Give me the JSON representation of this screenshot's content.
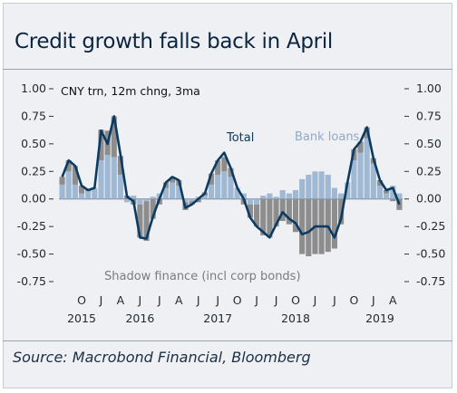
{
  "title": "Credit growth falls back in April",
  "source": "Source: Macrobond Financial, Bloomberg",
  "chart_data": {
    "type": "bar",
    "ylabel": "CNY trn, 12m chng, 3ma",
    "ylim": [
      -0.75,
      1.0
    ],
    "yticks": [
      "1.00",
      "0.75",
      "0.50",
      "0.25",
      "0.00",
      "-0.25",
      "-0.50",
      "-0.75"
    ],
    "ytick_values": [
      1.0,
      0.75,
      0.5,
      0.25,
      0.0,
      -0.25,
      -0.5,
      -0.75
    ],
    "xticks": [
      {
        "label": "O",
        "index": 3
      },
      {
        "label": "J",
        "index": 6
      },
      {
        "label": "A",
        "index": 9
      },
      {
        "label": "J",
        "index": 12
      },
      {
        "label": "J",
        "index": 15
      },
      {
        "label": "A",
        "index": 18
      },
      {
        "label": "J",
        "index": 21
      },
      {
        "label": "J",
        "index": 24
      },
      {
        "label": "O",
        "index": 27
      },
      {
        "label": "J",
        "index": 30
      },
      {
        "label": "J",
        "index": 33
      },
      {
        "label": "O",
        "index": 36
      },
      {
        "label": "J",
        "index": 39
      },
      {
        "label": "J",
        "index": 42
      },
      {
        "label": "O",
        "index": 45
      },
      {
        "label": "J",
        "index": 48
      },
      {
        "label": "A",
        "index": 51
      }
    ],
    "years": [
      {
        "label": "2015",
        "index": 3
      },
      {
        "label": "2016",
        "index": 12
      },
      {
        "label": "2017",
        "index": 24
      },
      {
        "label": "2018",
        "index": 36
      },
      {
        "label": "2019",
        "index": 49
      }
    ],
    "series": [
      {
        "name": "Bank loans",
        "kind": "bar",
        "color": "#9fb8d3",
        "values": [
          0.13,
          0.25,
          0.13,
          0.05,
          0.07,
          0.1,
          0.35,
          0.4,
          0.38,
          0.22,
          -0.03,
          0.03,
          -0.05,
          -0.02,
          0.02,
          0.05,
          0.1,
          0.15,
          0.12,
          -0.03,
          -0.02,
          0.02,
          0.03,
          0.13,
          0.22,
          0.25,
          0.2,
          0.1,
          0.05,
          -0.05,
          -0.05,
          0.03,
          0.05,
          0.02,
          0.08,
          0.05,
          0.08,
          0.18,
          0.22,
          0.25,
          0.25,
          0.22,
          0.1,
          0.05,
          0.15,
          0.35,
          0.42,
          0.55,
          0.32,
          0.12,
          0.05,
          0.12,
          0.05
        ]
      },
      {
        "name": "Shadow finance (incl corp bonds)",
        "kind": "bar",
        "color": "#8d8d8d",
        "values": [
          0.07,
          0.1,
          0.17,
          0.07,
          0.02,
          0.0,
          0.28,
          0.22,
          0.37,
          0.17,
          0.03,
          -0.05,
          -0.3,
          -0.36,
          -0.18,
          -0.05,
          0.05,
          0.05,
          0.05,
          -0.07,
          -0.03,
          -0.03,
          0.03,
          0.1,
          0.13,
          0.13,
          0.08,
          0.0,
          -0.05,
          -0.12,
          -0.2,
          -0.33,
          -0.35,
          -0.25,
          -0.2,
          -0.23,
          -0.3,
          -0.5,
          -0.52,
          -0.5,
          -0.5,
          -0.48,
          -0.45,
          -0.23,
          0.0,
          0.1,
          0.1,
          0.1,
          0.05,
          0.05,
          0.03,
          -0.02,
          -0.1
        ]
      },
      {
        "name": "Total",
        "kind": "line",
        "color": "#0c3a61",
        "values": [
          0.2,
          0.35,
          0.3,
          0.12,
          0.08,
          0.1,
          0.62,
          0.5,
          0.75,
          0.4,
          0.02,
          -0.02,
          -0.35,
          -0.36,
          -0.16,
          0.0,
          0.15,
          0.2,
          0.17,
          -0.08,
          -0.05,
          0.0,
          0.05,
          0.23,
          0.35,
          0.42,
          0.28,
          0.1,
          0.0,
          -0.17,
          -0.25,
          -0.3,
          -0.35,
          -0.23,
          -0.12,
          -0.18,
          -0.22,
          -0.32,
          -0.3,
          -0.25,
          -0.25,
          -0.25,
          -0.35,
          -0.18,
          0.15,
          0.45,
          0.52,
          0.65,
          0.37,
          0.17,
          0.08,
          0.1,
          -0.05
        ]
      }
    ],
    "annotations": [
      {
        "text": "Total",
        "series": "Total"
      },
      {
        "text": "Bank loans",
        "series": "Bank loans"
      },
      {
        "text": "Shadow finance (incl corp bonds)",
        "series": "Shadow finance (incl corp bonds)"
      }
    ]
  }
}
